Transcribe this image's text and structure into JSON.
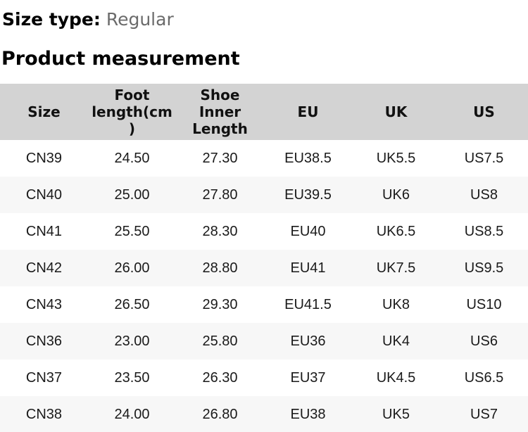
{
  "size_type": {
    "label": "Size type:",
    "value": "Regular"
  },
  "section_title": "Product measurement",
  "table": {
    "headers": {
      "size": "Size",
      "foot_length": "Foot\nlength(cm\n)",
      "shoe_inner_length": "Shoe\nInner\nLength",
      "eu": "EU",
      "uk": "UK",
      "us": "US"
    },
    "rows": [
      [
        "CN39",
        "24.50",
        "27.30",
        "EU38.5",
        "UK5.5",
        "US7.5"
      ],
      [
        "CN40",
        "25.00",
        "27.80",
        "EU39.5",
        "UK6",
        "US8"
      ],
      [
        "CN41",
        "25.50",
        "28.30",
        "EU40",
        "UK6.5",
        "US8.5"
      ],
      [
        "CN42",
        "26.00",
        "28.80",
        "EU41",
        "UK7.5",
        "US9.5"
      ],
      [
        "CN43",
        "26.50",
        "29.30",
        "EU41.5",
        "UK8",
        "US10"
      ],
      [
        "CN36",
        "23.00",
        "25.80",
        "EU36",
        "UK4",
        "US6"
      ],
      [
        "CN37",
        "23.50",
        "26.30",
        "EU37",
        "UK4.5",
        "US6.5"
      ],
      [
        "CN38",
        "24.00",
        "26.80",
        "EU38",
        "UK5",
        "US7"
      ]
    ]
  },
  "colors": {
    "header_background": "#d3d3d3",
    "alternate_row_background": "#f7f7f7",
    "muted_text": "#6b6b6b",
    "primary_text": "#000000"
  }
}
